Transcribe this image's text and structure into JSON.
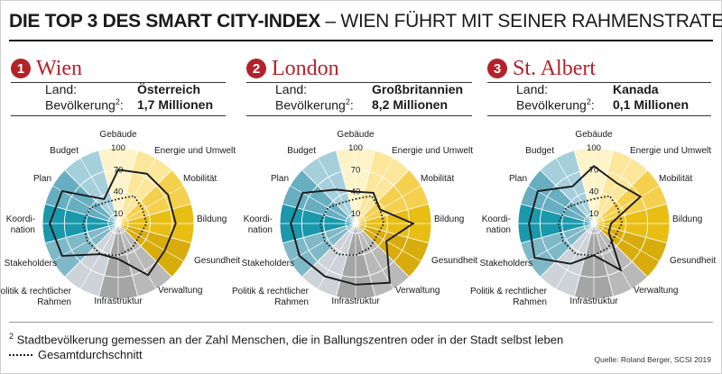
{
  "headline": {
    "bold": "DIE TOP 3 DES SMART CITY-INDEX",
    "light": " – WIEN FÜHRT MIT SEINER RAHMENSTRATEGIE"
  },
  "labels": {
    "land": "Land:",
    "bevoelkerung": "Bevölkerung",
    "bevoelkerung_sup": "2",
    "bevoelkerung_colon": ":"
  },
  "cities": [
    {
      "rank": "1",
      "name": "Wien",
      "land": "Österreich",
      "population": "1,7 Millionen"
    },
    {
      "rank": "2",
      "name": "London",
      "land": "Großbritannien",
      "population": "8,2 Millionen"
    },
    {
      "rank": "3",
      "name": "St. Albert",
      "land": "Kanada",
      "population": "0,1 Millionen"
    }
  ],
  "footnote": {
    "sup": "2",
    "text": " Stadtbevölkerung gemessen an der Zahl Menschen, die in Ballungszentren oder in der Stadt selbst leben"
  },
  "legend": {
    "average": "Gesamtdurchschnitt"
  },
  "source": "Quelle: Roland Berger, SCSI 2019",
  "colors": {
    "accent": "#b3222b",
    "sector_colors": [
      "#fdf3c8",
      "#fbe69a",
      "#f5d04e",
      "#e8bd14",
      "#d8ac0c",
      "#b9b9b9",
      "#a5a5a5",
      "#cdd3d8",
      "#7fb9c8",
      "#1a98ac",
      "#67aec0",
      "#a6cfdc"
    ]
  },
  "chart_data": [
    {
      "type": "radar",
      "title": "Wien",
      "axes": [
        "Gebäude",
        "Energie und Umwelt",
        "Mobilität",
        "Bildung",
        "Gesundheit",
        "Verwaltung",
        "Infrastruktur",
        "Politik & rechtlicher Rahmen",
        "Stakeholders",
        "Koordination",
        "Plan",
        "Budget"
      ],
      "ticks": [
        10,
        40,
        70,
        100
      ],
      "range": [
        10,
        100
      ],
      "series": [
        {
          "name": "Wien",
          "values": [
            70,
            75,
            75,
            75,
            70,
            78,
            45,
            45,
            85,
            90,
            85,
            35
          ]
        },
        {
          "name": "Gesamtdurchschnitt",
          "values": [
            30,
            40,
            35,
            35,
            30,
            35,
            40,
            45,
            45,
            45,
            40,
            30
          ]
        }
      ]
    },
    {
      "type": "radar",
      "title": "London",
      "axes": [
        "Gebäude",
        "Energie und Umwelt",
        "Mobilität",
        "Bildung",
        "Gesundheit",
        "Verwaltung",
        "Infrastruktur",
        "Politik & rechtlicher Rahmen",
        "Stakeholders",
        "Koordination",
        "Plan",
        "Budget"
      ],
      "ticks": [
        10,
        40,
        70,
        100
      ],
      "range": [
        10,
        100
      ],
      "series": [
        {
          "name": "London",
          "values": [
            40,
            45,
            35,
            75,
            45,
            90,
            80,
            80,
            85,
            85,
            80,
            50
          ]
        },
        {
          "name": "Gesamtdurchschnitt",
          "values": [
            30,
            40,
            35,
            35,
            30,
            35,
            40,
            45,
            45,
            45,
            40,
            30
          ]
        }
      ]
    },
    {
      "type": "radar",
      "title": "St. Albert",
      "axes": [
        "Gebäude",
        "Energie und Umwelt",
        "Mobilität",
        "Bildung",
        "Gesundheit",
        "Verwaltung",
        "Infrastruktur",
        "Politik & rechtlicher Rahmen",
        "Stakeholders",
        "Koordination",
        "Plan",
        "Budget"
      ],
      "ticks": [
        10,
        40,
        70,
        100
      ],
      "range": [
        10,
        100
      ],
      "series": [
        {
          "name": "St. Albert",
          "values": [
            75,
            60,
            70,
            20,
            20,
            70,
            40,
            60,
            90,
            85,
            85,
            55
          ]
        },
        {
          "name": "Gesamtdurchschnitt",
          "values": [
            30,
            40,
            35,
            35,
            30,
            35,
            40,
            45,
            45,
            45,
            40,
            30
          ]
        }
      ]
    }
  ]
}
